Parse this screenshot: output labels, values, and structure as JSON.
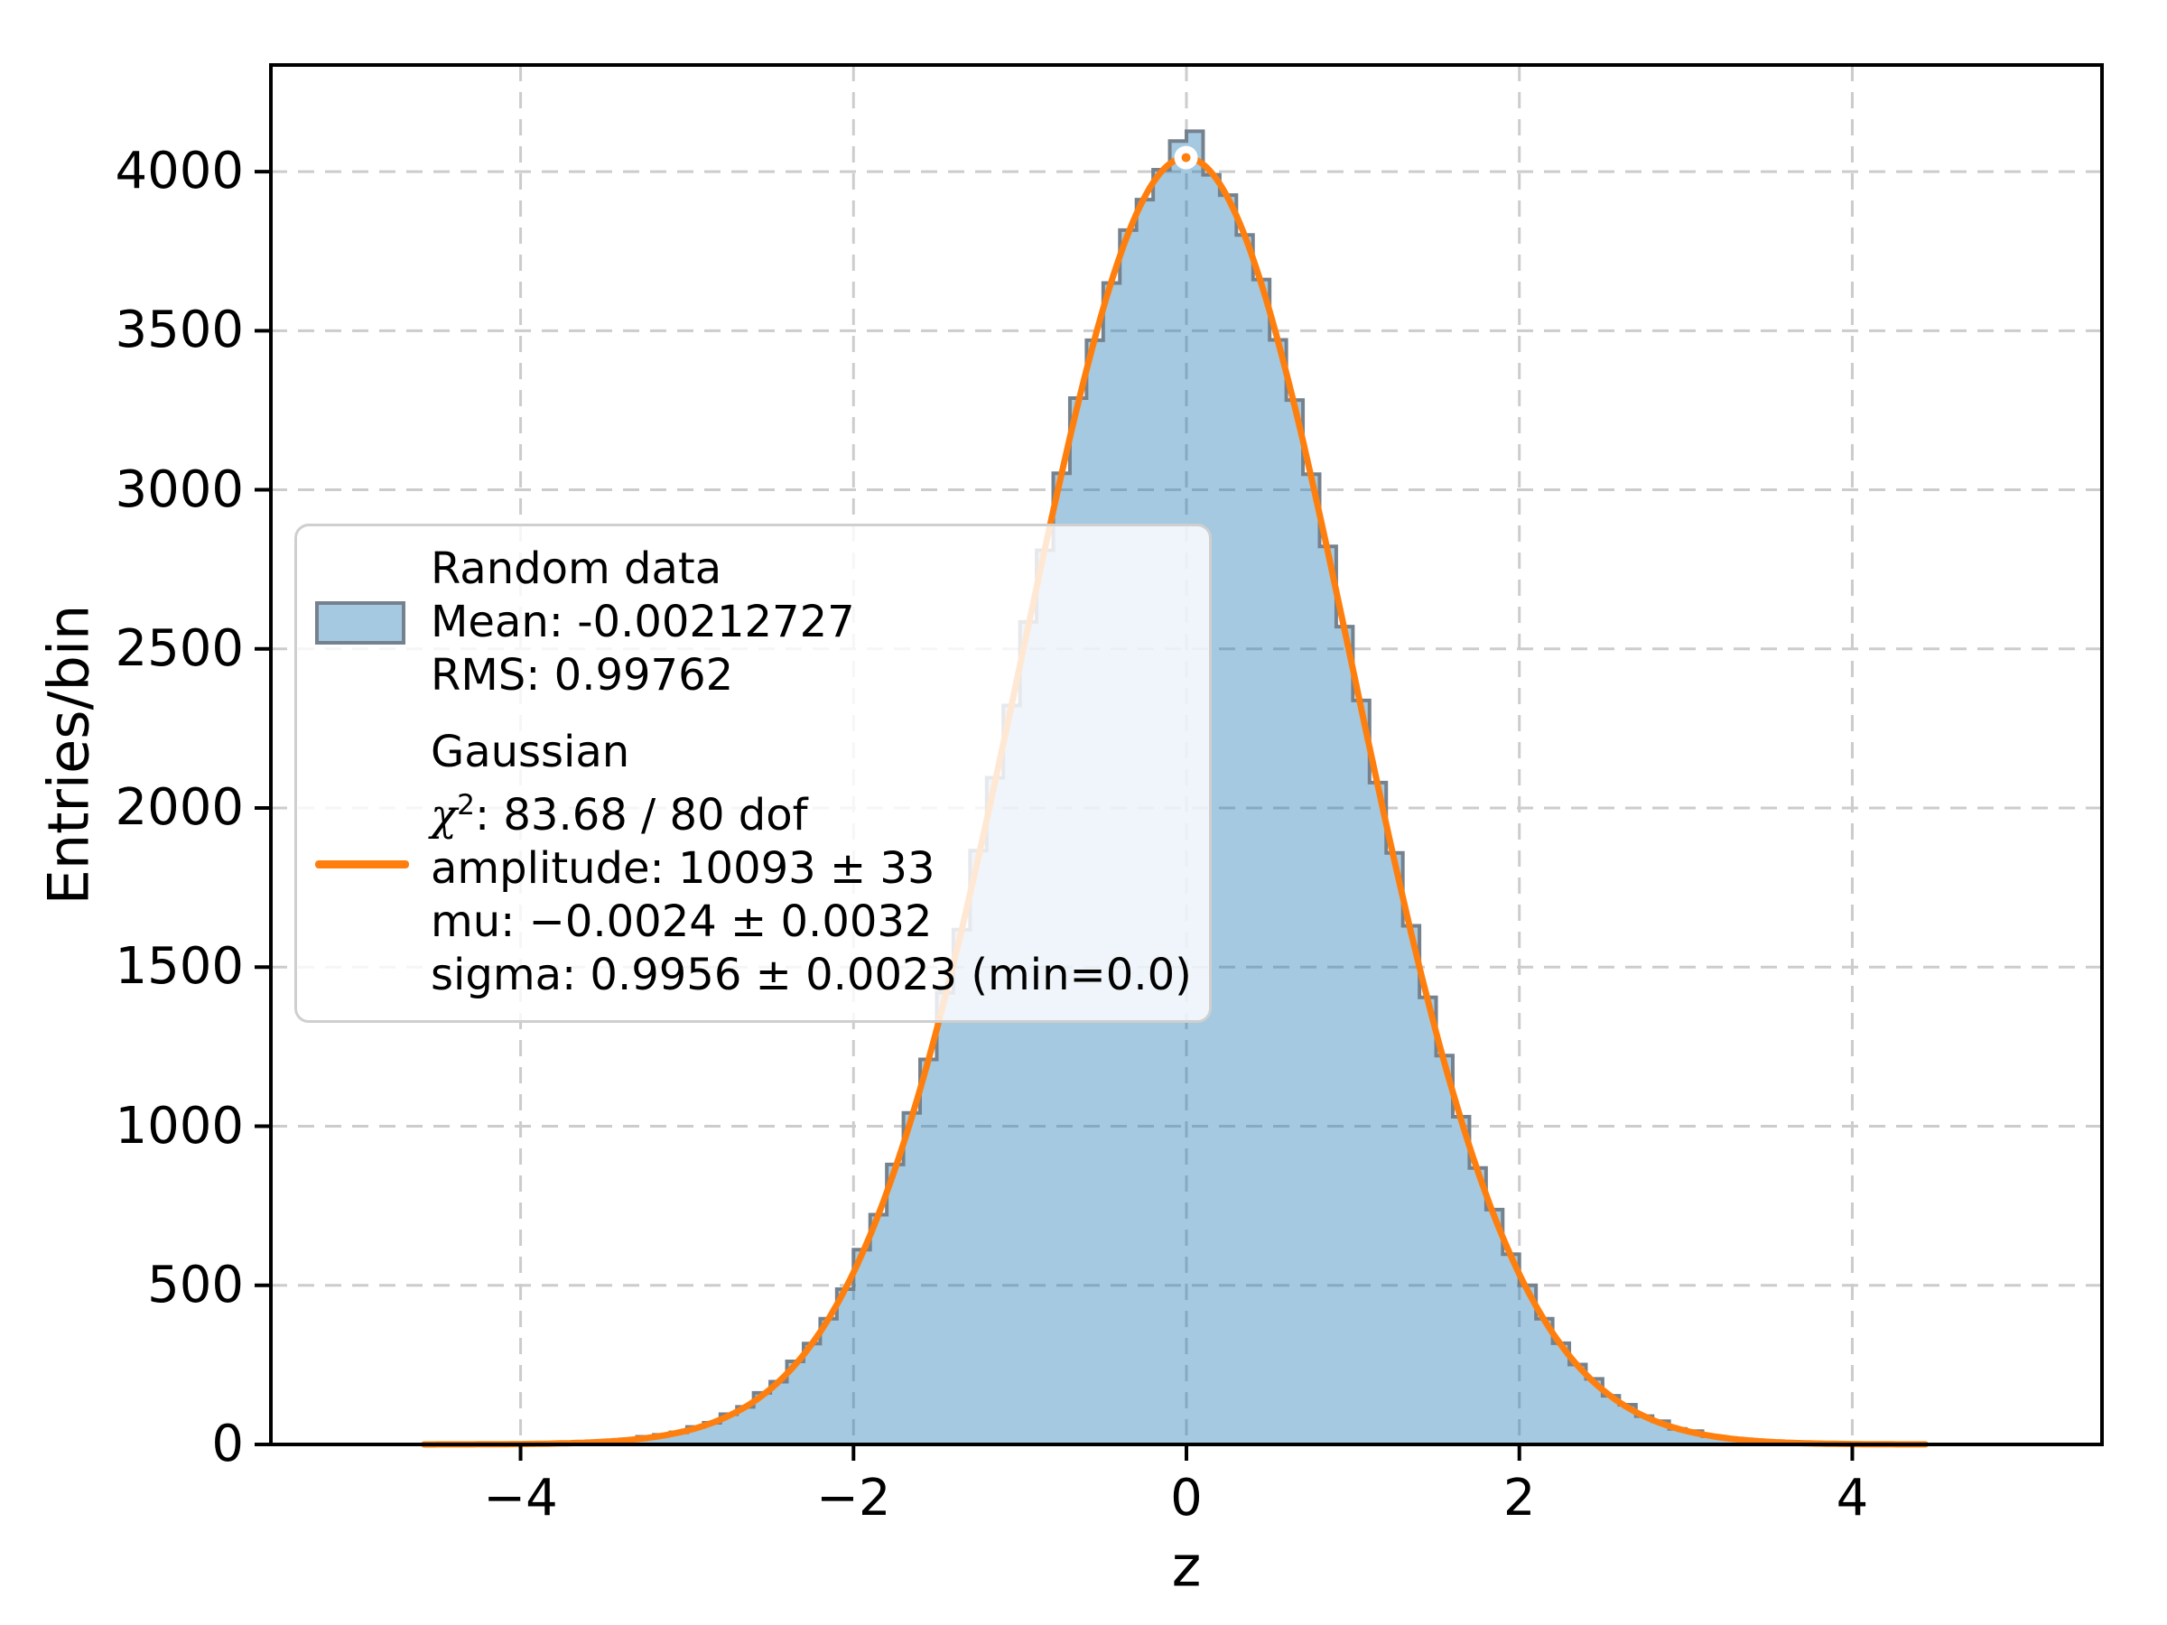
{
  "colors": {
    "hist_fill": "rgba(31,119,180,0.4)",
    "hist_fill_flat": "#a5c8e1",
    "hist_edge": "#75828e",
    "fit_line": "#ff7f0e",
    "marker_edge": "#ffffff",
    "grid": "#cccccc",
    "spine": "#000000",
    "legend_border": "#cfcfcf",
    "text": "#000000"
  },
  "legend": {
    "entry1": {
      "title": "Random data",
      "mean_line": "Mean: -0.00212727",
      "rms_line": "RMS: 0.99762"
    },
    "entry2": {
      "title": "Gaussian",
      "chi_symbol": "χ",
      "chi_sup": "2",
      "chi_rest": ": 83.68 / 80 dof",
      "amplitude_line": "amplitude: 10093 ± 33",
      "mu_line": "mu: −0.0024 ± 0.0032",
      "sigma_line": "sigma: 0.9956 ± 0.0023 (min=0.0)"
    }
  },
  "chart_data": {
    "type": "bar",
    "subtype": "histogram-with-gaussian-fit",
    "title": "",
    "xlabel": "z",
    "ylabel": "Entries/bin",
    "xlim": [
      -5.5,
      5.5
    ],
    "ylim": [
      0,
      4335
    ],
    "grid": true,
    "legend_position": "center-left",
    "xticks": [
      {
        "value": -4,
        "label": "−4"
      },
      {
        "value": -2,
        "label": "−2"
      },
      {
        "value": 0,
        "label": "0"
      },
      {
        "value": 2,
        "label": "2"
      },
      {
        "value": 4,
        "label": "4"
      }
    ],
    "yticks": [
      {
        "value": 0,
        "label": "0"
      },
      {
        "value": 500,
        "label": "500"
      },
      {
        "value": 1000,
        "label": "1000"
      },
      {
        "value": 1500,
        "label": "1500"
      },
      {
        "value": 2000,
        "label": "2000"
      },
      {
        "value": 2500,
        "label": "2500"
      },
      {
        "value": 3000,
        "label": "3000"
      },
      {
        "value": 3500,
        "label": "3500"
      },
      {
        "value": 4000,
        "label": "4000"
      }
    ],
    "histogram": {
      "name": "Random data",
      "mean": -0.00212727,
      "rms": 0.99762,
      "bin_start": -5.0,
      "bin_width": 0.1,
      "counts": [
        0,
        0,
        0,
        0,
        0,
        0,
        0,
        0,
        0,
        1,
        1,
        3,
        3,
        6,
        9,
        12,
        13,
        24,
        30,
        38,
        55,
        68,
        95,
        118,
        162,
        197,
        261,
        317,
        395,
        488,
        612,
        722,
        880,
        1042,
        1210,
        1420,
        1618,
        1866,
        2095,
        2322,
        2585,
        2810,
        3052,
        3288,
        3470,
        3650,
        3816,
        3912,
        4006,
        4096,
        4127,
        3990,
        3926,
        3801,
        3661,
        3471,
        3282,
        3049,
        2822,
        2570,
        2338,
        2080,
        1859,
        1630,
        1405,
        1222,
        1030,
        869,
        738,
        598,
        500,
        395,
        318,
        251,
        206,
        153,
        125,
        89,
        73,
        49,
        42,
        26,
        19,
        16,
        10,
        8,
        4,
        3,
        3,
        1,
        1,
        1,
        0,
        0,
        0,
        0,
        0,
        0,
        0,
        0
      ]
    },
    "fit": {
      "name": "Gaussian",
      "chi2": 83.68,
      "dof": 80,
      "amplitude": 10093,
      "amplitude_err": 33,
      "mu": -0.0024,
      "mu_err": 0.0032,
      "sigma": 0.9956,
      "sigma_err": 0.0023,
      "sigma_min_bound": 0.0,
      "x_range": [
        -4.58,
        4.45
      ],
      "peak_marker": {
        "x": -0.0024,
        "y": 4044
      }
    }
  }
}
